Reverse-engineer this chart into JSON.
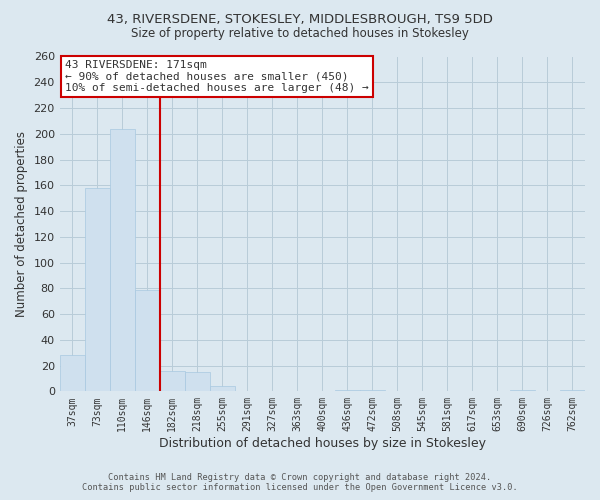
{
  "title1": "43, RIVERSDENE, STOKESLEY, MIDDLESBROUGH, TS9 5DD",
  "title2": "Size of property relative to detached houses in Stokesley",
  "xlabel": "Distribution of detached houses by size in Stokesley",
  "ylabel": "Number of detached properties",
  "bar_color": "#cfe0ee",
  "bar_edge_color": "#a8c8e0",
  "bg_color": "#dce8f0",
  "bins": [
    "37sqm",
    "73sqm",
    "110sqm",
    "146sqm",
    "182sqm",
    "218sqm",
    "255sqm",
    "291sqm",
    "327sqm",
    "363sqm",
    "400sqm",
    "436sqm",
    "472sqm",
    "508sqm",
    "545sqm",
    "581sqm",
    "617sqm",
    "653sqm",
    "690sqm",
    "726sqm",
    "762sqm"
  ],
  "values": [
    28,
    158,
    204,
    79,
    16,
    15,
    4,
    0,
    0,
    0,
    0,
    1,
    1,
    0,
    0,
    0,
    0,
    0,
    1,
    0,
    1
  ],
  "ylim": [
    0,
    260
  ],
  "yticks": [
    0,
    20,
    40,
    60,
    80,
    100,
    120,
    140,
    160,
    180,
    200,
    220,
    240,
    260
  ],
  "vline_color": "#cc0000",
  "vline_bin_index": 4,
  "annotation_title": "43 RIVERSDENE: 171sqm",
  "annotation_line1": "← 90% of detached houses are smaller (450)",
  "annotation_line2": "10% of semi-detached houses are larger (48) →",
  "annotation_box_facecolor": "#ffffff",
  "annotation_box_edgecolor": "#cc0000",
  "footer1": "Contains HM Land Registry data © Crown copyright and database right 2024.",
  "footer2": "Contains public sector information licensed under the Open Government Licence v3.0.",
  "grid_color": "#b8ccd8",
  "font_color": "#333333"
}
